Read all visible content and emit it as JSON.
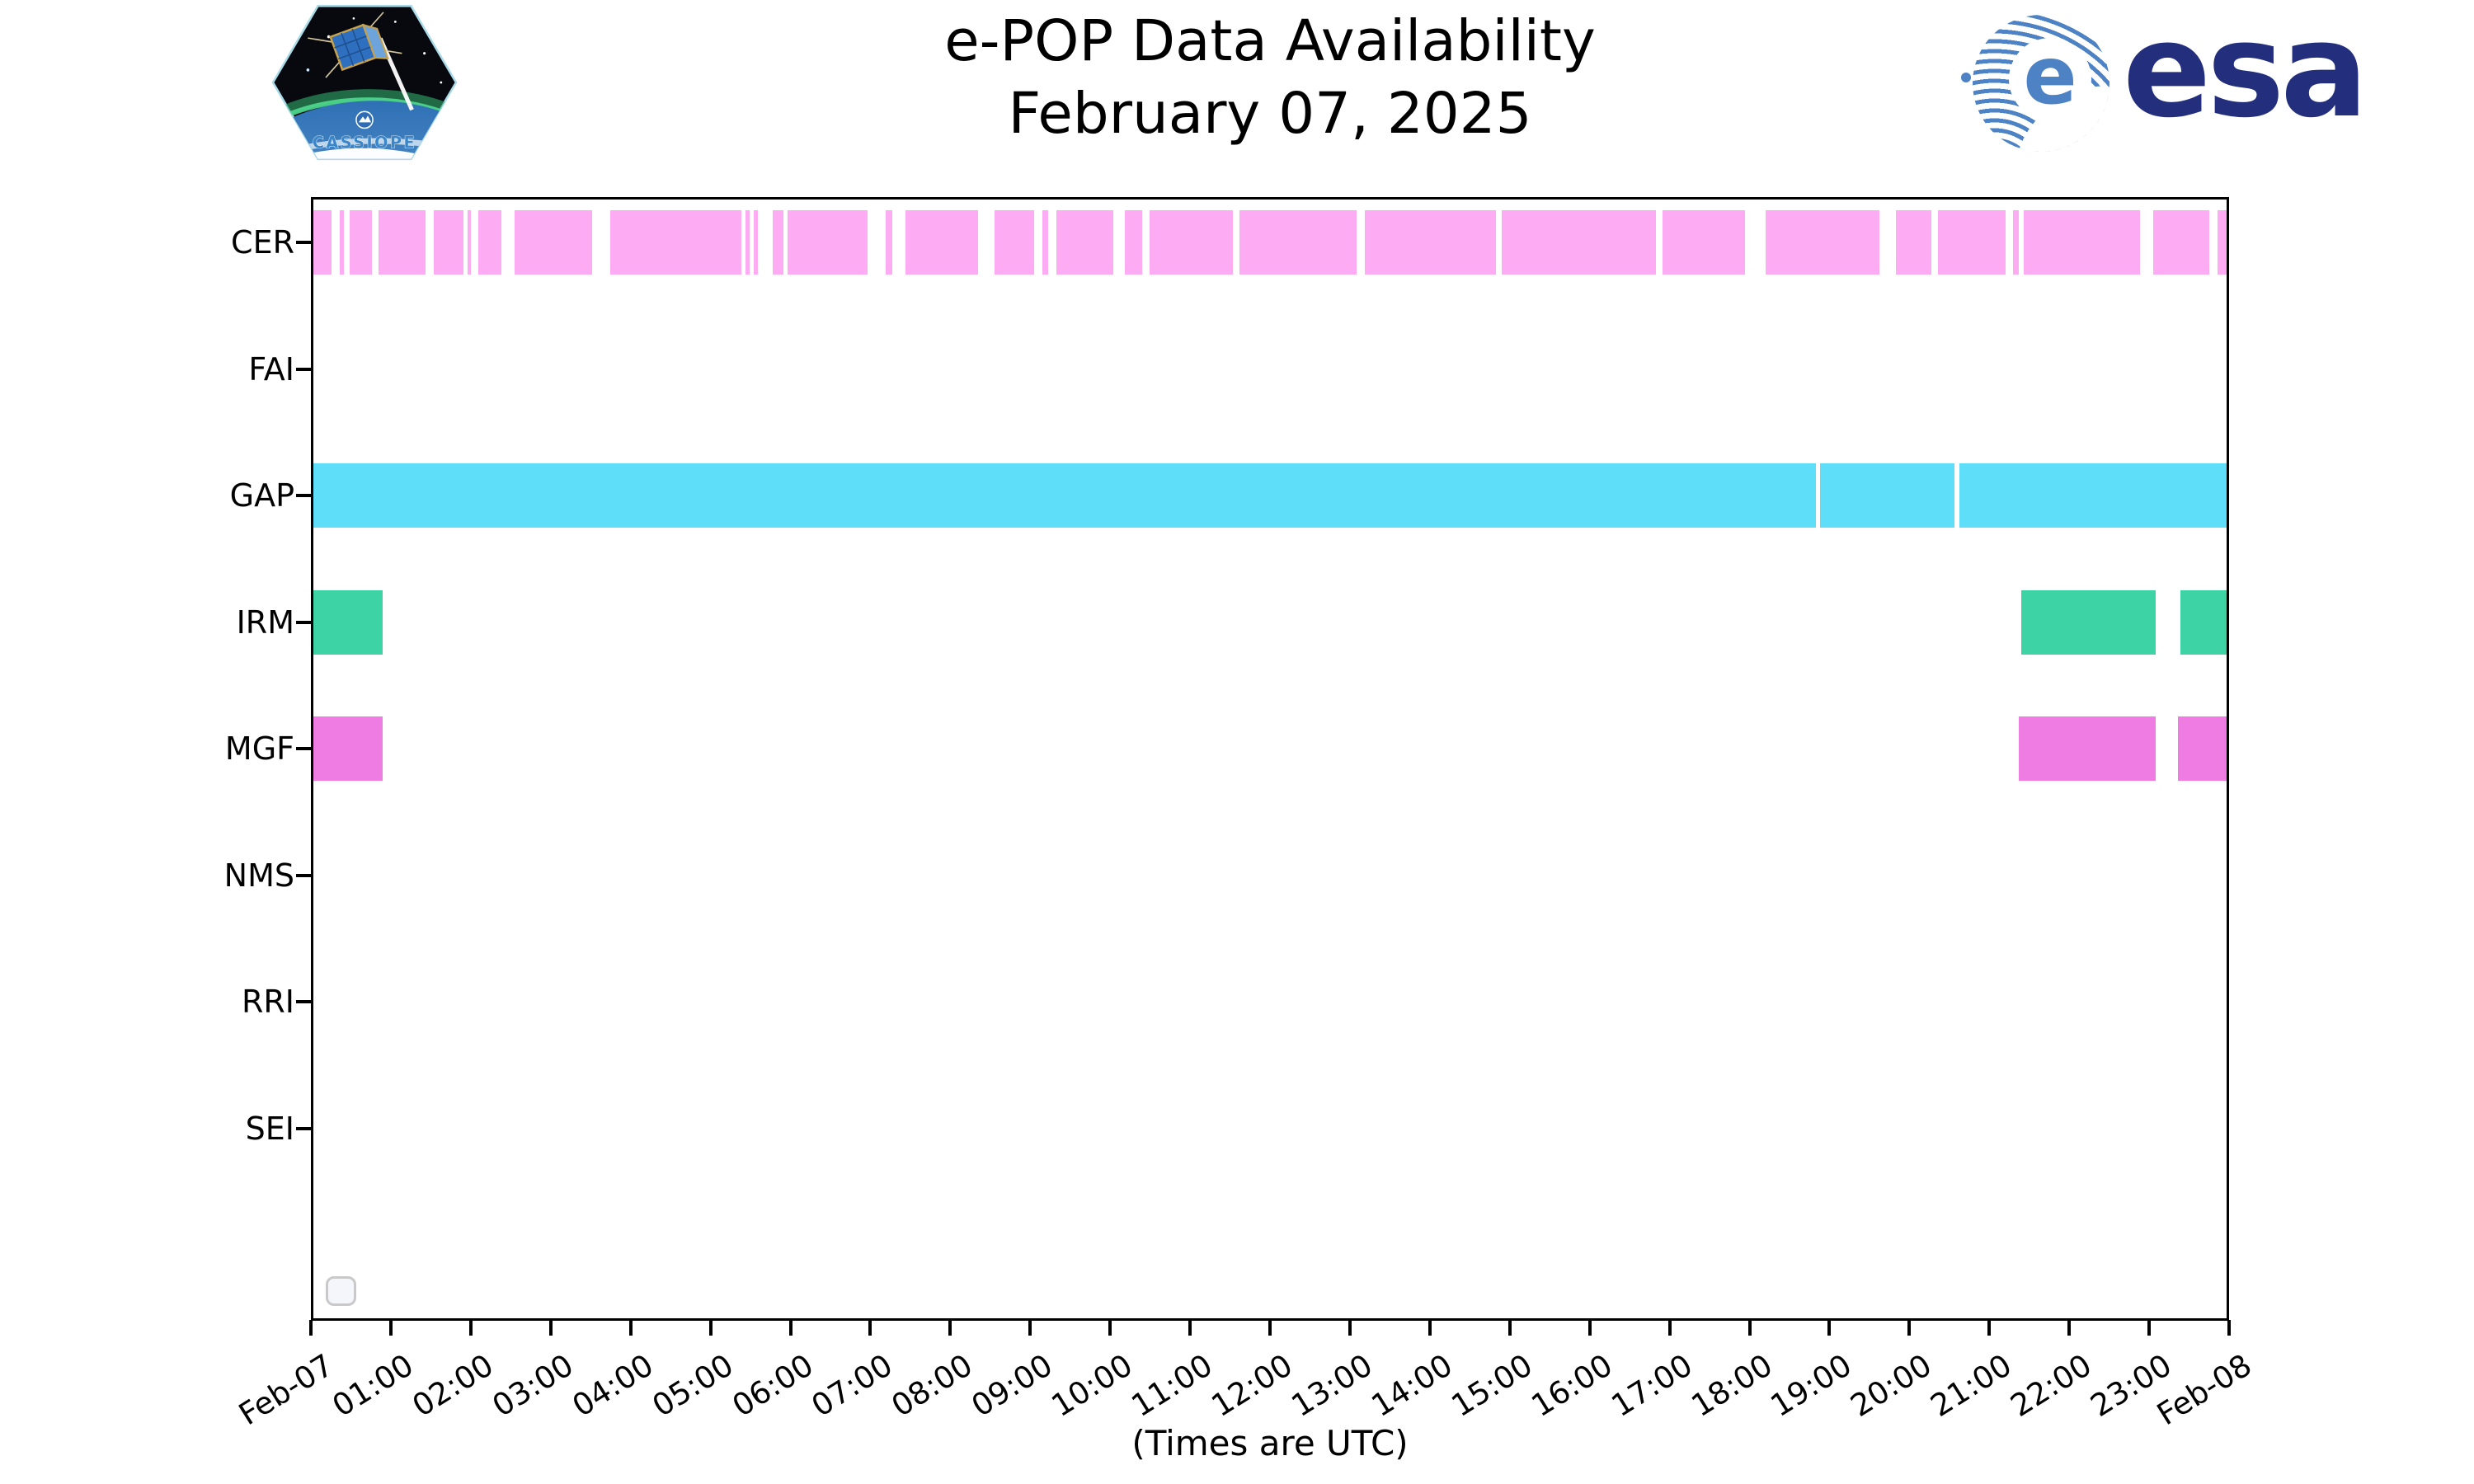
{
  "header": {
    "title_line1": "e-POP Data Availability",
    "title_line2": "February 07, 2025"
  },
  "logos": {
    "cassiope_text": "CASSIOPE",
    "esa_text": "esa",
    "esa_e": "e"
  },
  "colors": {
    "axis": "#000000",
    "background": "#ffffff",
    "legend_border": "#c9c9c9",
    "esa_blue": "#232f7d",
    "esa_stripe": "#4d82c4",
    "cer": "#fdabf3",
    "gap": "#5fdefa",
    "irm": "#3ed3a5",
    "mgf": "#ef7ce2"
  },
  "chart_data": {
    "type": "timeline",
    "title": "e-POP Data Availability",
    "subtitle": "February 07, 2025",
    "xlabel": "(Times are UTC)",
    "x_unit": "hours (UTC)",
    "xlim": [
      0,
      24
    ],
    "x_tick_labels": [
      "Feb-07",
      "01:00",
      "02:00",
      "03:00",
      "04:00",
      "05:00",
      "06:00",
      "07:00",
      "08:00",
      "09:00",
      "10:00",
      "11:00",
      "12:00",
      "13:00",
      "14:00",
      "15:00",
      "16:00",
      "17:00",
      "18:00",
      "19:00",
      "20:00",
      "21:00",
      "22:00",
      "23:00",
      "Feb-08"
    ],
    "grid": false,
    "legend": {
      "visible": true,
      "entries": [],
      "position": "lower left"
    },
    "rows": [
      {
        "label": "CER",
        "color": "#fdabf3",
        "segments": [
          [
            0.0,
            0.23
          ],
          [
            0.33,
            0.38
          ],
          [
            0.46,
            0.73
          ],
          [
            0.82,
            1.41
          ],
          [
            1.51,
            1.88
          ],
          [
            1.93,
            1.98
          ],
          [
            2.07,
            2.36
          ],
          [
            2.52,
            3.5
          ],
          [
            3.72,
            5.37
          ],
          [
            5.42,
            5.47
          ],
          [
            5.52,
            5.58
          ],
          [
            5.76,
            5.9
          ],
          [
            5.95,
            6.95
          ],
          [
            7.18,
            7.26
          ],
          [
            7.43,
            8.34
          ],
          [
            8.54,
            9.04
          ],
          [
            9.14,
            9.22
          ],
          [
            9.32,
            10.03
          ],
          [
            10.18,
            10.4
          ],
          [
            10.49,
            11.53
          ],
          [
            11.62,
            13.09
          ],
          [
            13.19,
            14.83
          ],
          [
            14.91,
            16.84
          ],
          [
            16.92,
            17.96
          ],
          [
            18.22,
            19.65
          ],
          [
            19.85,
            20.3
          ],
          [
            20.38,
            21.23
          ],
          [
            21.32,
            21.39
          ],
          [
            21.45,
            22.91
          ],
          [
            23.08,
            23.78
          ],
          [
            23.89,
            24.0
          ]
        ]
      },
      {
        "label": "FAI",
        "color": null,
        "segments": []
      },
      {
        "label": "GAP",
        "color": "#5fdefa",
        "segments": [
          [
            0.0,
            18.85
          ],
          [
            18.9,
            20.59
          ],
          [
            20.65,
            24.0
          ]
        ]
      },
      {
        "label": "IRM",
        "color": "#3ed3a5",
        "segments": [
          [
            0.0,
            0.87
          ],
          [
            21.42,
            23.11
          ],
          [
            23.42,
            24.0
          ]
        ]
      },
      {
        "label": "MGF",
        "color": "#ef7ce2",
        "segments": [
          [
            0.0,
            0.87
          ],
          [
            21.39,
            23.11
          ],
          [
            23.39,
            24.0
          ]
        ]
      },
      {
        "label": "NMS",
        "color": null,
        "segments": []
      },
      {
        "label": "RRI",
        "color": null,
        "segments": []
      },
      {
        "label": "SEI",
        "color": null,
        "segments": []
      }
    ]
  }
}
